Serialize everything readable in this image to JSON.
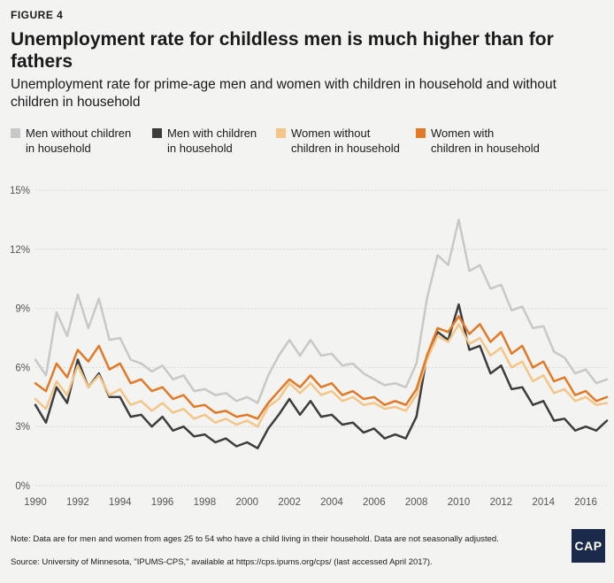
{
  "figure_label": "FIGURE 4",
  "note": "Note: Data are for men and women from ages 25 to 54 who have a child living in their household. Data are not seasonally adjusted.",
  "source": "Source: University of Minnesota, \"IPUMS-CPS,\" available at https://cps.ipums.org/cps/ (last accessed April 2017).",
  "logo_text": "CAP",
  "chart_data": {
    "type": "line",
    "title": "Unemployment rate for childless men is much higher than for fathers",
    "subtitle": "Unemployment rate for prime-age men and women with children in household and without children in household",
    "xlabel": "",
    "ylabel": "",
    "xlim": [
      1990,
      2017
    ],
    "ylim": [
      0,
      15
    ],
    "x_ticks": [
      "1990",
      "1992",
      "1994",
      "1996",
      "1998",
      "2000",
      "2002",
      "2004",
      "2006",
      "2008",
      "2010",
      "2012",
      "2014",
      "2016"
    ],
    "y_ticks": [
      "0%",
      "3%",
      "6%",
      "9%",
      "12%",
      "15%"
    ],
    "grid": true,
    "legend_position": "top",
    "x": [
      1990,
      1990.5,
      1991,
      1991.5,
      1992,
      1992.5,
      1993,
      1993.5,
      1994,
      1994.5,
      1995,
      1995.5,
      1996,
      1996.5,
      1997,
      1997.5,
      1998,
      1998.5,
      1999,
      1999.5,
      2000,
      2000.5,
      2001,
      2001.5,
      2002,
      2002.5,
      2003,
      2003.5,
      2004,
      2004.5,
      2005,
      2005.5,
      2006,
      2006.5,
      2007,
      2007.5,
      2008,
      2008.5,
      2009,
      2009.5,
      2010,
      2010.5,
      2011,
      2011.5,
      2012,
      2012.5,
      2013,
      2013.5,
      2014,
      2014.5,
      2015,
      2015.5,
      2016,
      2016.5,
      2017
    ],
    "series": [
      {
        "name": "Men without children in household",
        "legend_label": "Men without children\nin household",
        "color": "#c8c8c8",
        "values": [
          6.4,
          5.6,
          8.8,
          7.6,
          9.7,
          8.0,
          9.5,
          7.4,
          7.5,
          6.4,
          6.2,
          5.8,
          6.1,
          5.4,
          5.6,
          4.8,
          4.9,
          4.6,
          4.7,
          4.3,
          4.5,
          4.2,
          5.6,
          6.6,
          7.4,
          6.6,
          7.4,
          6.6,
          6.7,
          6.1,
          6.2,
          5.7,
          5.4,
          5.1,
          5.2,
          5.0,
          6.2,
          9.5,
          11.7,
          11.2,
          13.5,
          10.9,
          11.2,
          10.0,
          10.2,
          8.9,
          9.1,
          8.0,
          8.1,
          6.8,
          6.5,
          5.7,
          5.9,
          5.2,
          5.4
        ]
      },
      {
        "name": "Men with children in household",
        "legend_label": "Men with children\nin household",
        "color": "#3d3d3d",
        "values": [
          4.1,
          3.2,
          5.0,
          4.2,
          6.4,
          5.0,
          5.7,
          4.5,
          4.5,
          3.5,
          3.6,
          3.0,
          3.5,
          2.8,
          3.0,
          2.5,
          2.6,
          2.2,
          2.4,
          2.0,
          2.2,
          1.9,
          2.9,
          3.6,
          4.4,
          3.6,
          4.3,
          3.5,
          3.6,
          3.1,
          3.2,
          2.7,
          2.9,
          2.4,
          2.6,
          2.4,
          3.5,
          6.6,
          7.8,
          7.4,
          9.2,
          6.9,
          7.1,
          5.7,
          6.1,
          4.9,
          5.0,
          4.1,
          4.3,
          3.3,
          3.4,
          2.8,
          3.0,
          2.8,
          3.3
        ]
      },
      {
        "name": "Women without children in household",
        "legend_label": "Women without\nchildren in household",
        "color": "#f3c688",
        "values": [
          4.4,
          3.9,
          5.3,
          4.6,
          6.1,
          5.0,
          5.6,
          4.6,
          4.9,
          4.1,
          4.3,
          3.8,
          4.2,
          3.7,
          3.9,
          3.4,
          3.6,
          3.2,
          3.4,
          3.1,
          3.3,
          3.0,
          4.0,
          4.4,
          5.2,
          4.7,
          5.2,
          4.6,
          4.8,
          4.3,
          4.5,
          4.1,
          4.2,
          3.9,
          4.0,
          3.8,
          4.6,
          6.4,
          7.6,
          7.3,
          8.2,
          7.2,
          7.5,
          6.6,
          7.0,
          6.0,
          6.3,
          5.3,
          5.6,
          4.7,
          4.9,
          4.3,
          4.5,
          4.1,
          4.2
        ]
      },
      {
        "name": "Women with children in household",
        "legend_label": "Women with\nchildren in household",
        "color": "#e27926",
        "values": [
          5.2,
          4.8,
          6.2,
          5.5,
          6.9,
          6.3,
          7.1,
          5.9,
          6.2,
          5.2,
          5.4,
          4.8,
          5.0,
          4.4,
          4.6,
          4.0,
          4.1,
          3.7,
          3.8,
          3.5,
          3.6,
          3.4,
          4.2,
          4.8,
          5.4,
          5.0,
          5.6,
          5.0,
          5.2,
          4.6,
          4.8,
          4.4,
          4.5,
          4.1,
          4.3,
          4.1,
          4.9,
          6.6,
          8.0,
          7.8,
          8.6,
          7.7,
          8.2,
          7.3,
          7.8,
          6.7,
          7.1,
          6.0,
          6.3,
          5.3,
          5.5,
          4.6,
          4.8,
          4.3,
          4.5
        ]
      }
    ]
  }
}
